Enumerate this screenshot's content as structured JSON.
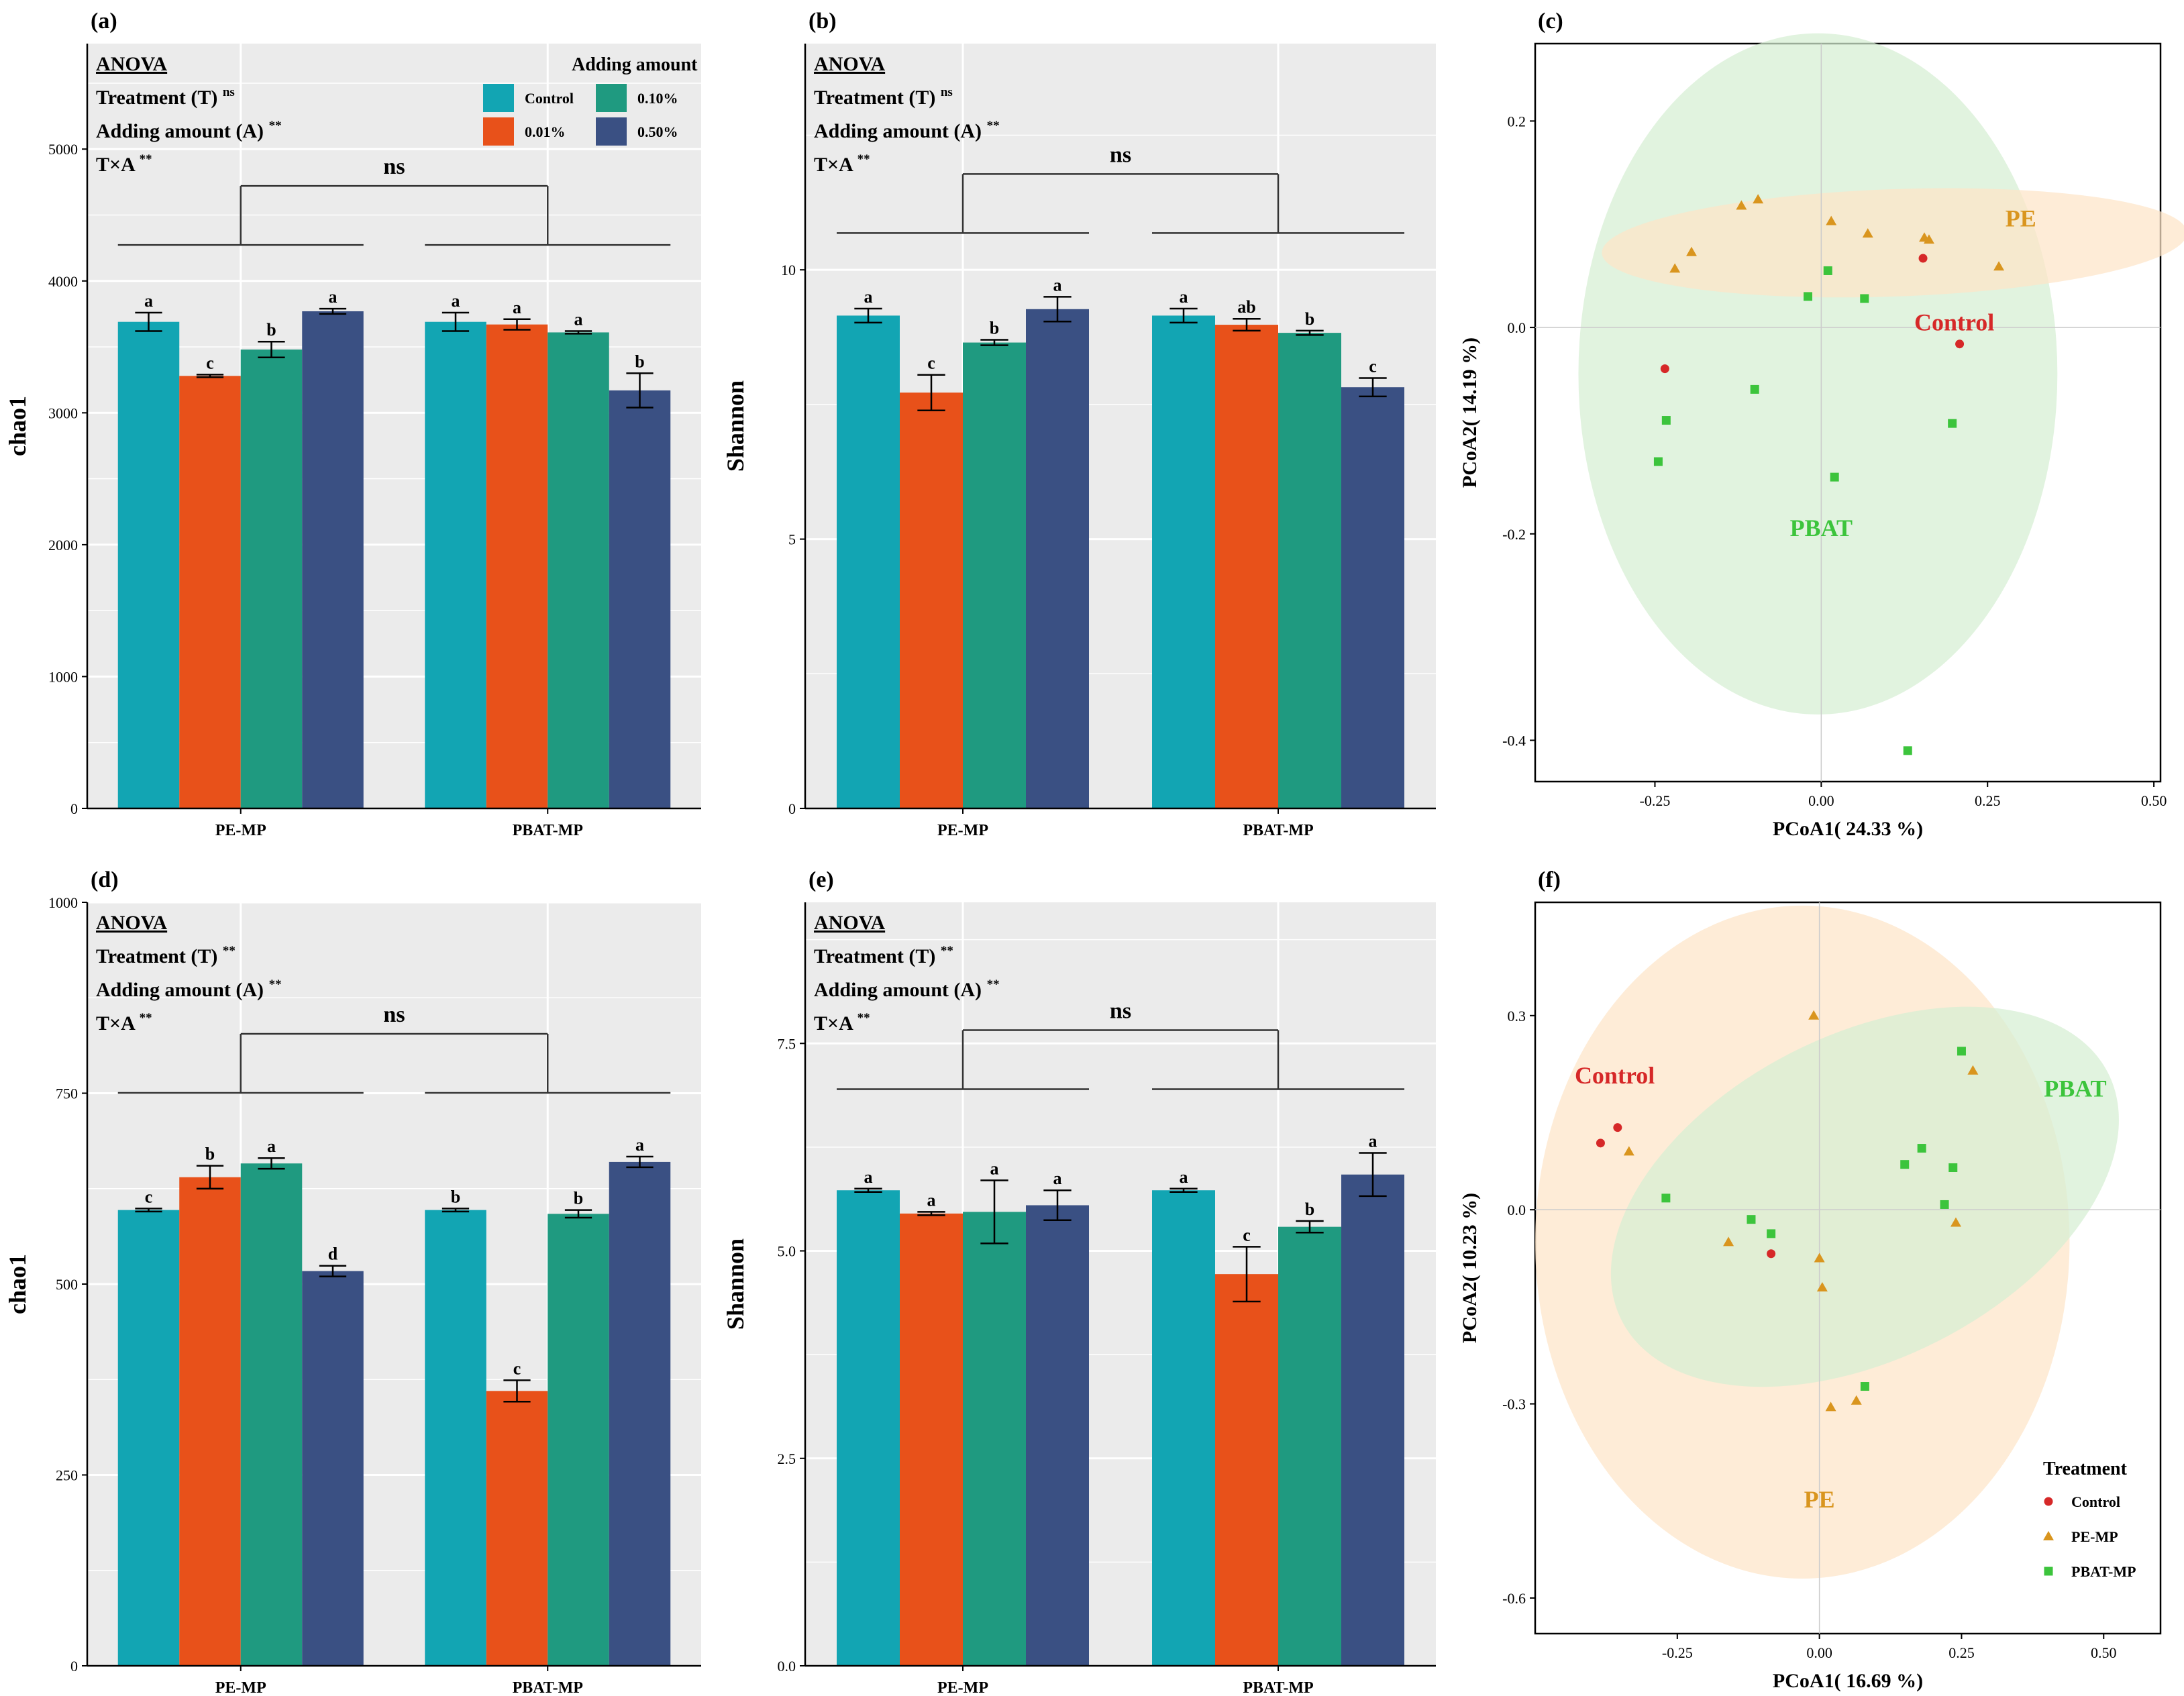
{
  "colors": {
    "control": "#12a5b3",
    "p001": "#e8511a",
    "p010": "#1f9a80",
    "p050": "#3a5083",
    "panel_bg": "#ebebeb",
    "pca_control": "#d62828",
    "pca_pe": "#d9951e",
    "pca_pbat": "#3cc43c",
    "ellipse_pe": "#fde5c8",
    "ellipse_pbat": "#d6efd3"
  },
  "anova_heading": "ANOVA",
  "legend_bar": {
    "title": "Adding amount",
    "labels": [
      "Control",
      "0.01%",
      "0.10%",
      "0.50%"
    ]
  },
  "legend_pca": {
    "title": "Treatment",
    "labels": [
      "Control",
      "PE-MP",
      "PBAT-MP"
    ]
  },
  "chart_data": [
    {
      "panel": "(a)",
      "type": "bar",
      "ylabel": "chao1",
      "ylim": [
        0,
        5800
      ],
      "yticks": [
        0,
        1000,
        2000,
        3000,
        4000,
        5000
      ],
      "categories": [
        "PE-MP",
        "PBAT-MP"
      ],
      "anova": [
        {
          "label": "Treatment (T)",
          "sig": "ns"
        },
        {
          "label": "Adding amount (A)",
          "sig": "**"
        },
        {
          "label": "T×A",
          "sig": "**"
        }
      ],
      "comparison": "ns",
      "series": [
        {
          "name": "Control",
          "values": [
            3690,
            3690
          ],
          "errors": [
            70,
            70
          ],
          "letters": [
            "a",
            "a"
          ]
        },
        {
          "name": "0.01%",
          "values": [
            3280,
            3670
          ],
          "errors": [
            10,
            40
          ],
          "letters": [
            "c",
            "a"
          ]
        },
        {
          "name": "0.10%",
          "values": [
            3480,
            3610
          ],
          "errors": [
            60,
            10
          ],
          "letters": [
            "b",
            "a"
          ]
        },
        {
          "name": "0.50%",
          "values": [
            3770,
            3170
          ],
          "errors": [
            20,
            130
          ],
          "letters": [
            "a",
            "b"
          ]
        }
      ]
    },
    {
      "panel": "(b)",
      "type": "bar",
      "ylabel": "Shannon",
      "ylim": [
        0,
        14.2
      ],
      "yticks": [
        0,
        5,
        10
      ],
      "categories": [
        "PE-MP",
        "PBAT-MP"
      ],
      "anova": [
        {
          "label": "Treatment (T)",
          "sig": "ns"
        },
        {
          "label": "Adding amount (A)",
          "sig": "**"
        },
        {
          "label": "T×A",
          "sig": "**"
        }
      ],
      "comparison": "ns",
      "series": [
        {
          "name": "Control",
          "values": [
            9.15,
            9.15
          ],
          "errors": [
            0.13,
            0.13
          ],
          "letters": [
            "a",
            "a"
          ]
        },
        {
          "name": "0.01%",
          "values": [
            7.72,
            8.98
          ],
          "errors": [
            0.33,
            0.11
          ],
          "letters": [
            "c",
            "ab"
          ]
        },
        {
          "name": "0.10%",
          "values": [
            8.65,
            8.83
          ],
          "errors": [
            0.05,
            0.04
          ],
          "letters": [
            "b",
            "b"
          ]
        },
        {
          "name": "0.50%",
          "values": [
            9.27,
            7.82
          ],
          "errors": [
            0.23,
            0.17
          ],
          "letters": [
            "a",
            "c"
          ]
        }
      ]
    },
    {
      "panel": "(c)",
      "type": "scatter",
      "xlabel": "PCoA1( 24.33 %)",
      "ylabel": "PCoA2( 14.19 %)",
      "xlim": [
        -0.43,
        0.51
      ],
      "ylim": [
        -0.44,
        0.275
      ],
      "xticks": [
        -0.25,
        0.0,
        0.25,
        0.5
      ],
      "yticks": [
        -0.4,
        -0.2,
        0.0,
        0.2
      ],
      "ellipses": [
        {
          "group": "PBAT",
          "cx": -0.005,
          "cy": -0.045,
          "rx": 0.36,
          "ry": 0.33,
          "angle": 0
        },
        {
          "group": "PE",
          "cx": 0.11,
          "cy": 0.082,
          "rx": 0.44,
          "ry": 0.052,
          "angle": -2
        }
      ],
      "group_labels": [
        {
          "text": "PE",
          "x": 0.3,
          "y": 0.098,
          "color": "pca_pe"
        },
        {
          "text": "Control",
          "x": 0.2,
          "y": -0.003,
          "color": "pca_control"
        },
        {
          "text": "PBAT",
          "x": 0.0,
          "y": -0.202,
          "color": "pca_pbat"
        }
      ],
      "series": [
        {
          "name": "Control",
          "shape": "circle",
          "x": [
            0.153,
            0.208,
            -0.235
          ],
          "y": [
            0.067,
            -0.016,
            -0.04
          ]
        },
        {
          "name": "PE-MP",
          "shape": "triangle",
          "x": [
            -0.22,
            -0.195,
            -0.12,
            -0.095,
            0.015,
            0.07,
            0.155,
            0.162,
            0.267
          ],
          "y": [
            0.057,
            0.073,
            0.118,
            0.124,
            0.103,
            0.091,
            0.087,
            0.085,
            0.059
          ]
        },
        {
          "name": "PBAT-MP",
          "shape": "square",
          "x": [
            -0.245,
            -0.233,
            -0.1,
            -0.02,
            0.01,
            0.065,
            0.02,
            0.197,
            0.13
          ],
          "y": [
            -0.13,
            -0.09,
            -0.06,
            0.03,
            0.055,
            0.028,
            -0.145,
            -0.093,
            -0.41
          ]
        }
      ]
    },
    {
      "panel": "(d)",
      "type": "bar",
      "ylabel": "chao1",
      "ylim": [
        0,
        1000
      ],
      "yticks": [
        0,
        250,
        500,
        750,
        1000
      ],
      "categories": [
        "PE-MP",
        "PBAT-MP"
      ],
      "anova": [
        {
          "label": "Treatment (T)",
          "sig": "**"
        },
        {
          "label": "Adding amount (A)",
          "sig": "**"
        },
        {
          "label": "T×A",
          "sig": "**"
        }
      ],
      "comparison": "ns",
      "series": [
        {
          "name": "Control",
          "values": [
            597,
            597
          ],
          "errors": [
            2,
            2
          ],
          "letters": [
            "c",
            "b"
          ]
        },
        {
          "name": "0.01%",
          "values": [
            640,
            360
          ],
          "errors": [
            15,
            14
          ],
          "letters": [
            "b",
            "c"
          ]
        },
        {
          "name": "0.10%",
          "values": [
            658,
            592
          ],
          "errors": [
            7,
            5
          ],
          "letters": [
            "a",
            "b"
          ]
        },
        {
          "name": "0.50%",
          "values": [
            517,
            660
          ],
          "errors": [
            7,
            7
          ],
          "letters": [
            "d",
            "a"
          ]
        }
      ]
    },
    {
      "panel": "(e)",
      "type": "bar",
      "ylabel": "Shannon",
      "ylim": [
        0,
        9.2
      ],
      "yticks": [
        0.0,
        2.5,
        5.0,
        7.5
      ],
      "categories": [
        "PE-MP",
        "PBAT-MP"
      ],
      "anova": [
        {
          "label": "Treatment (T)",
          "sig": "**"
        },
        {
          "label": "Adding amount (A)",
          "sig": "**"
        },
        {
          "label": "T×A",
          "sig": "**"
        }
      ],
      "comparison": "ns",
      "series": [
        {
          "name": "Control",
          "values": [
            5.73,
            5.73
          ],
          "errors": [
            0.02,
            0.02
          ],
          "letters": [
            "a",
            "a"
          ]
        },
        {
          "name": "0.01%",
          "values": [
            5.45,
            4.72
          ],
          "errors": [
            0.02,
            0.33
          ],
          "letters": [
            "a",
            "c"
          ]
        },
        {
          "name": "0.10%",
          "values": [
            5.47,
            5.29
          ],
          "errors": [
            0.38,
            0.07
          ],
          "letters": [
            "a",
            "b"
          ]
        },
        {
          "name": "0.50%",
          "values": [
            5.55,
            5.92
          ],
          "errors": [
            0.18,
            0.26
          ],
          "letters": [
            "a",
            "a"
          ]
        }
      ]
    },
    {
      "panel": "(f)",
      "type": "scatter",
      "xlabel": "PCoA1( 16.69 %)",
      "ylabel": "PCoA2( 10.23 %)",
      "xlim": [
        -0.5,
        0.6
      ],
      "ylim": [
        -0.655,
        0.475
      ],
      "xticks": [
        -0.25,
        0.0,
        0.25,
        0.5
      ],
      "yticks": [
        -0.6,
        -0.3,
        0.0,
        0.3
      ],
      "ellipses": [
        {
          "group": "PE",
          "cx": -0.03,
          "cy": -0.05,
          "rx": 0.47,
          "ry": 0.52,
          "angle": 0
        },
        {
          "group": "PBAT",
          "cx": 0.08,
          "cy": 0.02,
          "rx": 0.48,
          "ry": 0.25,
          "angle": -27
        }
      ],
      "group_labels": [
        {
          "text": "Control",
          "x": -0.36,
          "y": 0.195,
          "color": "pca_control"
        },
        {
          "text": "PBAT",
          "x": 0.45,
          "y": 0.175,
          "color": "pca_pbat"
        },
        {
          "text": "PE",
          "x": 0.0,
          "y": -0.46,
          "color": "pca_pe"
        }
      ],
      "series": [
        {
          "name": "Control",
          "shape": "circle",
          "x": [
            -0.385,
            -0.355,
            -0.085
          ],
          "y": [
            0.103,
            0.127,
            -0.068
          ]
        },
        {
          "name": "PE-MP",
          "shape": "triangle",
          "x": [
            -0.335,
            -0.16,
            -0.01,
            0.0,
            0.005,
            0.02,
            0.065,
            0.24,
            0.27
          ],
          "y": [
            0.09,
            -0.05,
            0.3,
            -0.075,
            -0.12,
            -0.305,
            -0.295,
            -0.02,
            0.215
          ]
        },
        {
          "name": "PBAT-MP",
          "shape": "square",
          "x": [
            -0.27,
            -0.12,
            -0.085,
            0.08,
            0.15,
            0.18,
            0.22,
            0.235,
            0.25
          ],
          "y": [
            0.018,
            -0.015,
            -0.037,
            -0.273,
            0.07,
            0.095,
            0.008,
            0.065,
            0.245
          ]
        }
      ]
    }
  ]
}
